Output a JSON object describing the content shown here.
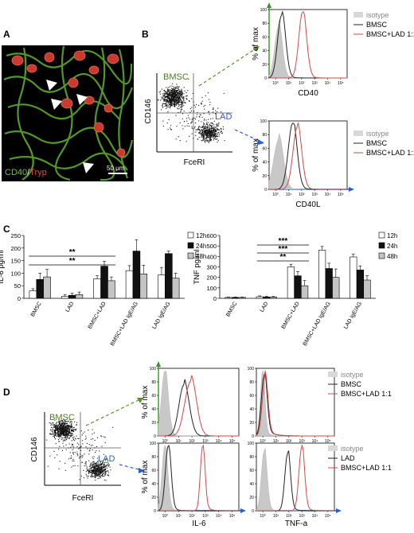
{
  "panel_letters": {
    "a": "A",
    "b": "B",
    "c": "C",
    "d": "D"
  },
  "panelA": {
    "label_cd40": "CD40",
    "label_sep": "/",
    "label_tryp": "Tryp",
    "scale": "50 μm"
  },
  "gates": {
    "bmsc": "BMSC",
    "lad": "LAD"
  },
  "axes": {
    "cd146": "CD146",
    "fceri": "FceRI",
    "cd40": "CD40",
    "cd40l": "CD40L",
    "pct_max": "% of max",
    "il6": "IL-6",
    "tnfa": "TNF-a",
    "il6_ylabel": "IL-6 pg/ml",
    "tnf_ylabel": "TNF pg/ml",
    "flow_ticks": [
      "10⁰",
      "10¹",
      "10²",
      "10³",
      "10⁴",
      "10⁵"
    ]
  },
  "legend_b": [
    "isotype",
    "BMSC",
    "BMSC+LAD 1:1"
  ],
  "legend_d1": [
    "isotype",
    "BMSC",
    "BMSC+LAD 1:1"
  ],
  "legend_d2": [
    "isotype",
    "LAD",
    "BMSC+LAD 1:1"
  ],
  "colors": {
    "isotype": "#c8c8c8",
    "bmsc": "#222222",
    "bmsc_lad": "#d04a4a",
    "green": "#4f7a1f",
    "blue": "#2b5fc8",
    "cd40_text": "#7ac143",
    "tryp_text": "#e04848"
  },
  "chart_data": [
    {
      "type": "bar",
      "title": "",
      "ylabel": "IL-6 pg/ml",
      "ylim": [
        0,
        250
      ],
      "yticks": [
        0,
        50,
        100,
        150,
        200,
        250
      ],
      "categories": [
        "BMSC",
        "LAD",
        "BMSC+LAD",
        "BMSC+LAD IgE/AG",
        "LAD IgE/AG"
      ],
      "series": [
        {
          "name": "12h",
          "values": [
            30,
            8,
            78,
            110,
            93
          ],
          "errors": [
            8,
            6,
            12,
            20,
            30
          ]
        },
        {
          "name": "24h",
          "values": [
            75,
            12,
            128,
            188,
            178
          ],
          "errors": [
            25,
            8,
            20,
            45,
            10
          ]
        },
        {
          "name": "48h",
          "values": [
            85,
            15,
            70,
            97,
            80
          ],
          "errors": [
            30,
            10,
            15,
            35,
            20
          ]
        }
      ],
      "significance": [
        {
          "label": "**",
          "from": "BMSC",
          "to": "BMSC+LAD"
        },
        {
          "label": "**",
          "from": "BMSC",
          "to": "BMSC+LAD"
        }
      ]
    },
    {
      "type": "bar",
      "title": "",
      "ylabel": "TNF pg/ml",
      "ylim": [
        0,
        600
      ],
      "yticks": [
        0,
        100,
        200,
        300,
        400,
        500,
        600
      ],
      "categories": [
        "BMSC",
        "LAD",
        "BMSC+LAD",
        "BMSC+LAD IgE/AG",
        "LAD IgE/AG"
      ],
      "series": [
        {
          "name": "12h",
          "values": [
            8,
            15,
            300,
            460,
            395
          ],
          "errors": [
            4,
            8,
            25,
            35,
            25
          ]
        },
        {
          "name": "24h",
          "values": [
            8,
            12,
            215,
            285,
            270
          ],
          "errors": [
            4,
            6,
            40,
            50,
            40
          ]
        },
        {
          "name": "48h",
          "values": [
            8,
            12,
            120,
            200,
            175
          ],
          "errors": [
            4,
            6,
            50,
            80,
            40
          ]
        }
      ],
      "significance": [
        {
          "label": "***",
          "from": "LAD",
          "to": "BMSC+LAD"
        },
        {
          "label": "***",
          "from": "LAD",
          "to": "BMSC+LAD"
        },
        {
          "label": "**",
          "from": "LAD",
          "to": "BMSC+LAD"
        }
      ]
    }
  ]
}
